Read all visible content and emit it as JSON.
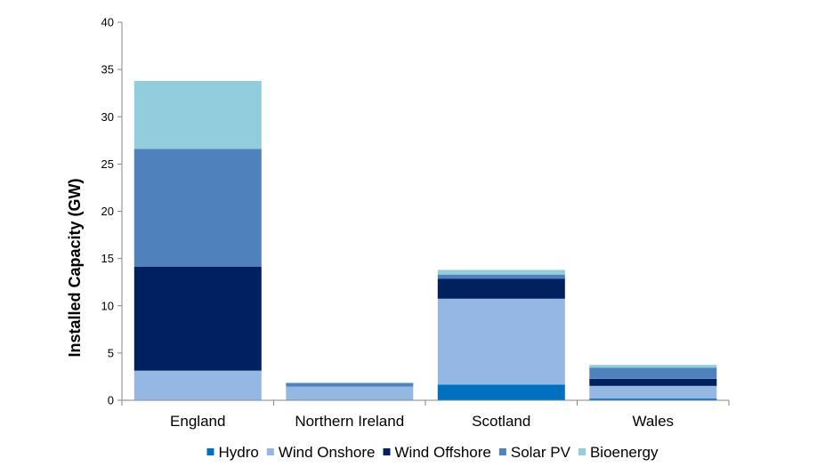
{
  "chart_data": {
    "type": "bar",
    "stacked": true,
    "title": "",
    "xlabel": "",
    "ylabel": "Installed Capacity (GW)",
    "ylim": [
      0,
      40
    ],
    "yticks": [
      0,
      5,
      10,
      15,
      20,
      25,
      30,
      35,
      40
    ],
    "grid": false,
    "legend_position": "bottom",
    "categories": [
      "England",
      "Northern Ireland",
      "Scotland",
      "Wales"
    ],
    "series": [
      {
        "name": "Hydro",
        "color": "#0070C0",
        "values": [
          0.05,
          0.01,
          1.65,
          0.18
        ]
      },
      {
        "name": "Wind Onshore",
        "color": "#95B8E3",
        "values": [
          3.1,
          1.45,
          9.1,
          1.35
        ]
      },
      {
        "name": "Wind Offshore",
        "color": "#002060",
        "values": [
          11.0,
          0.0,
          2.1,
          0.73
        ]
      },
      {
        "name": "Solar PV",
        "color": "#4F81BD",
        "values": [
          12.45,
          0.35,
          0.45,
          1.18
        ]
      },
      {
        "name": "Bioenergy",
        "color": "#92CDDC",
        "values": [
          7.2,
          0.08,
          0.5,
          0.31
        ]
      }
    ]
  }
}
